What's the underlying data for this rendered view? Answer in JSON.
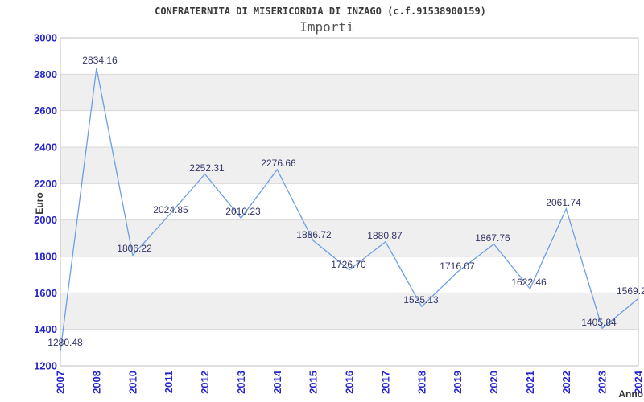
{
  "header": {
    "title": "CONFRATERNITA DI MISERICORDIA DI INZAGO (c.f.91538900159)",
    "subtitle": "Importi"
  },
  "colors": {
    "line": "#6b9fe4",
    "tick_label": "#2626cc",
    "data_label": "#333366",
    "band_gray": "#efefef",
    "gridline": "#d8d8d8",
    "plot_border": "#c0c0c0",
    "title": "#3a3a3a",
    "subtitle": "#555555",
    "axis_title": "#333333",
    "background": "#ffffff"
  },
  "chart_data": {
    "type": "line",
    "title": "CONFRATERNITA DI MISERICORDIA DI INZAGO (c.f.91538900159)",
    "subtitle": "Importi",
    "xlabel": "Anno",
    "ylabel": "Euro",
    "ylim": [
      1200,
      3000
    ],
    "ytick_step": 200,
    "grid": true,
    "legend": false,
    "banded_background": true,
    "categories": [
      "2007",
      "2008",
      "2010",
      "2011",
      "2012",
      "2013",
      "2014",
      "2015",
      "2016",
      "2017",
      "2018",
      "2019",
      "2020",
      "2021",
      "2022",
      "2023",
      "2024"
    ],
    "series": [
      {
        "name": "Importi",
        "values": [
          1280.48,
          2834.16,
          1806.22,
          2024.85,
          2252.31,
          2010.23,
          2276.66,
          1886.72,
          1726.7,
          1880.87,
          1525.13,
          1716.07,
          1867.76,
          1622.46,
          2061.74,
          1405.84,
          1569.2
        ]
      }
    ],
    "point_labels": [
      "1280.48",
      "2834.16",
      "1806.22",
      "2024.85",
      "2252.31",
      "2010.23",
      "2276.66",
      "1886.72",
      "1726.70",
      "1880.87",
      "1525.13",
      "1716.07",
      "1867.76",
      "1622.46",
      "2061.74",
      "1405.84",
      "1569.2"
    ]
  }
}
